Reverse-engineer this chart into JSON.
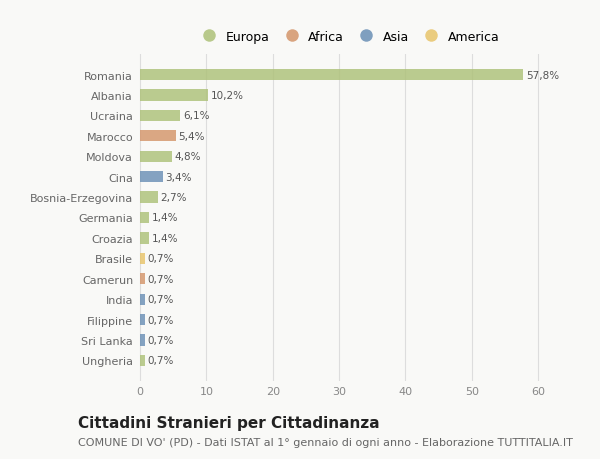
{
  "categories": [
    "Romania",
    "Albania",
    "Ucraina",
    "Marocco",
    "Moldova",
    "Cina",
    "Bosnia-Erzegovina",
    "Germania",
    "Croazia",
    "Brasile",
    "Camerun",
    "India",
    "Filippine",
    "Sri Lanka",
    "Ungheria"
  ],
  "values": [
    57.8,
    10.2,
    6.1,
    5.4,
    4.8,
    3.4,
    2.7,
    1.4,
    1.4,
    0.7,
    0.7,
    0.7,
    0.7,
    0.7,
    0.7
  ],
  "labels": [
    "57,8%",
    "10,2%",
    "6,1%",
    "5,4%",
    "4,8%",
    "3,4%",
    "2,7%",
    "1,4%",
    "1,4%",
    "0,7%",
    "0,7%",
    "0,7%",
    "0,7%",
    "0,7%",
    "0,7%"
  ],
  "colors": [
    "#adc178",
    "#adc178",
    "#adc178",
    "#d4956a",
    "#adc178",
    "#6a8fb5",
    "#adc178",
    "#adc178",
    "#adc178",
    "#e8c46a",
    "#d4956a",
    "#6a8fb5",
    "#6a8fb5",
    "#6a8fb5",
    "#adc178"
  ],
  "legend_labels": [
    "Europa",
    "Africa",
    "Asia",
    "America"
  ],
  "legend_colors": [
    "#adc178",
    "#d4956a",
    "#6a8fb5",
    "#e8c46a"
  ],
  "title": "Cittadini Stranieri per Cittadinanza",
  "subtitle": "COMUNE DI VO' (PD) - Dati ISTAT al 1° gennaio di ogni anno - Elaborazione TUTTITALIA.IT",
  "xlabel_ticks": [
    0,
    10,
    20,
    30,
    40,
    50,
    60
  ],
  "xlim": [
    -0.3,
    63
  ],
  "background_color": "#f9f9f7",
  "grid_color": "#dddddd",
  "title_fontsize": 11,
  "subtitle_fontsize": 8,
  "label_fontsize": 7.5,
  "tick_fontsize": 8,
  "legend_fontsize": 9
}
